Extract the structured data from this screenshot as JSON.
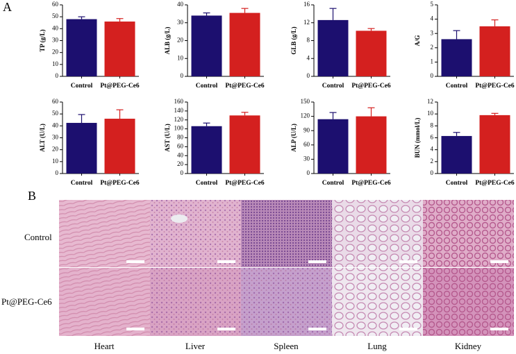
{
  "panel_labels": [
    "A",
    "B"
  ],
  "histology": {
    "rows": [
      "Control",
      "Pt@PEG-Ce6"
    ],
    "columns": [
      "Heart",
      "Liver",
      "Spleen",
      "Lung",
      "Kidney"
    ]
  },
  "chart_data": [
    {
      "type": "bar",
      "ylabel": "TP (g/L)",
      "categories": [
        "Control",
        "Pt@PEG-Ce6"
      ],
      "values": [
        48,
        46
      ],
      "errors": [
        2,
        2.5
      ],
      "colors": [
        "#1c0f6f",
        "#d4201f"
      ],
      "ylim": [
        0,
        60
      ],
      "yticks": [
        0,
        10,
        20,
        30,
        40,
        50,
        60
      ]
    },
    {
      "type": "bar",
      "ylabel": "ALB (g/L)",
      "categories": [
        "Control",
        "Pt@PEG-Ce6"
      ],
      "values": [
        34,
        35.5
      ],
      "errors": [
        1.5,
        2.5
      ],
      "colors": [
        "#1c0f6f",
        "#d4201f"
      ],
      "ylim": [
        0,
        40
      ],
      "yticks": [
        0,
        10,
        20,
        30,
        40
      ]
    },
    {
      "type": "bar",
      "ylabel": "GLB (g/L)",
      "categories": [
        "Control",
        "Pt@PEG-Ce6"
      ],
      "values": [
        12.6,
        10.2
      ],
      "errors": [
        2.6,
        0.5
      ],
      "colors": [
        "#1c0f6f",
        "#d4201f"
      ],
      "ylim": [
        0,
        16
      ],
      "yticks": [
        0,
        4,
        8,
        12,
        16
      ]
    },
    {
      "type": "bar",
      "ylabel": "A/G",
      "categories": [
        "Control",
        "Pt@PEG-Ce6"
      ],
      "values": [
        2.6,
        3.5
      ],
      "errors": [
        0.6,
        0.45
      ],
      "colors": [
        "#1c0f6f",
        "#d4201f"
      ],
      "ylim": [
        0,
        5
      ],
      "yticks": [
        0,
        1,
        2,
        3,
        4,
        5
      ]
    },
    {
      "type": "bar",
      "ylabel": "ALT (U/L)",
      "categories": [
        "Control",
        "Pt@PEG-Ce6"
      ],
      "values": [
        42.5,
        46
      ],
      "errors": [
        7,
        7.5
      ],
      "colors": [
        "#1c0f6f",
        "#d4201f"
      ],
      "ylim": [
        0,
        60
      ],
      "yticks": [
        0,
        10,
        20,
        30,
        40,
        50,
        60
      ]
    },
    {
      "type": "bar",
      "ylabel": "AST (U/L)",
      "categories": [
        "Control",
        "Pt@PEG-Ce6"
      ],
      "values": [
        106,
        130
      ],
      "errors": [
        7,
        7
      ],
      "colors": [
        "#1c0f6f",
        "#d4201f"
      ],
      "ylim": [
        0,
        160
      ],
      "yticks": [
        0,
        20,
        40,
        60,
        80,
        100,
        120,
        140,
        160
      ]
    },
    {
      "type": "bar",
      "ylabel": "ALP (U/L)",
      "categories": [
        "Control",
        "Pt@PEG-Ce6"
      ],
      "values": [
        114,
        120
      ],
      "errors": [
        14,
        18
      ],
      "colors": [
        "#1c0f6f",
        "#d4201f"
      ],
      "ylim": [
        0,
        150
      ],
      "yticks": [
        0,
        30,
        60,
        90,
        120,
        150
      ]
    },
    {
      "type": "bar",
      "ylabel": "BUN (mmol/L)",
      "categories": [
        "Control",
        "Pt@PEG-Ce6"
      ],
      "values": [
        6.3,
        9.8
      ],
      "errors": [
        0.6,
        0.3
      ],
      "colors": [
        "#1c0f6f",
        "#d4201f"
      ],
      "ylim": [
        0,
        12
      ],
      "yticks": [
        0,
        2,
        4,
        6,
        8,
        10,
        12
      ]
    }
  ]
}
